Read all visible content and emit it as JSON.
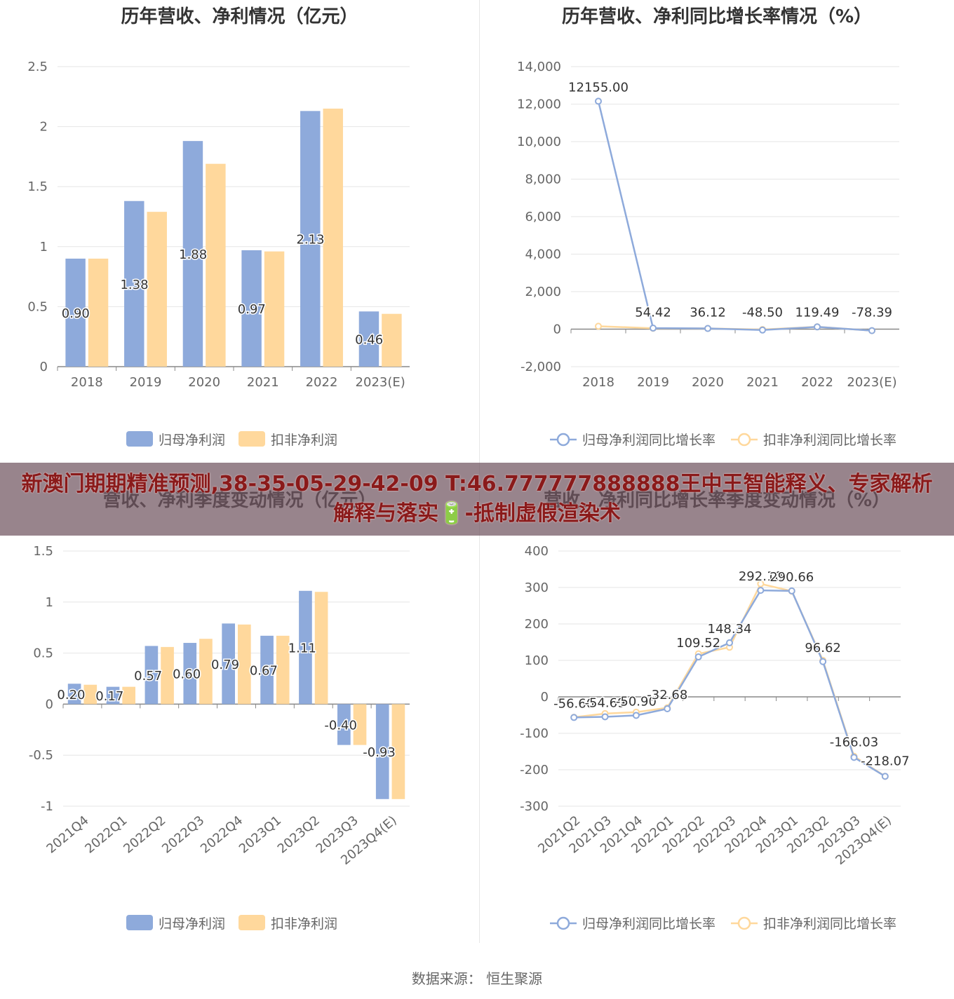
{
  "banner": {
    "text": "新澳门期期精准预测,38-35-05-29-42-09 T:46.777777888888王中王智能释义、专家解析解释与落实🔋-抵制虚假渲染术"
  },
  "source": "数据来源：  恒生聚源",
  "colors": {
    "series1": "#8eaadb",
    "series2": "#ffd89c",
    "axis": "#666666",
    "grid": "#e6e6e6"
  },
  "chart_data": [
    {
      "type": "bar",
      "title": "历年营收、净利情况（亿元）",
      "categories": [
        "2018",
        "2019",
        "2020",
        "2021",
        "2022",
        "2023(E)"
      ],
      "ylim": [
        0,
        2.5
      ],
      "yticks": [
        "0",
        "0.5",
        "1",
        "1.5",
        "2",
        "2.5"
      ],
      "series": [
        {
          "name": "归母净利润",
          "values": [
            0.9,
            1.38,
            1.88,
            0.97,
            2.13,
            0.46
          ],
          "labels": [
            "0.90",
            "1.38",
            "1.88",
            "0.97",
            "2.13",
            "0.46"
          ]
        },
        {
          "name": "扣非净利润",
          "values": [
            0.9,
            1.29,
            1.69,
            0.96,
            2.15,
            0.44
          ]
        }
      ],
      "legend": "bottom"
    },
    {
      "type": "line",
      "title": "历年营收、净利同比增长率情况（%）",
      "categories": [
        "2018",
        "2019",
        "2020",
        "2021",
        "2022",
        "2023(E)"
      ],
      "ylim": [
        -2000,
        14000
      ],
      "yticks": [
        "-2,000",
        "0",
        "2,000",
        "4,000",
        "6,000",
        "8,000",
        "10,000",
        "12,000",
        "14,000"
      ],
      "series": [
        {
          "name": "归母净利润同比增长率",
          "values": [
            12155.0,
            54.42,
            36.12,
            -48.5,
            119.49,
            -78.39
          ],
          "labels": [
            "12155.00",
            "54.42",
            "36.12",
            "-48.50",
            "119.49",
            "-78.39"
          ]
        },
        {
          "name": "扣非净利润同比增长率",
          "values": [
            155,
            48,
            38,
            -20,
            125,
            -80
          ]
        }
      ],
      "legend": "bottom"
    },
    {
      "type": "bar",
      "title": "营收、净利季度变动情况（亿元）",
      "categories": [
        "2021Q4",
        "2022Q1",
        "2022Q2",
        "2022Q3",
        "2022Q4",
        "2023Q1",
        "2023Q2",
        "2023Q3",
        "2023Q4(E)"
      ],
      "ylim": [
        -1,
        1.5
      ],
      "yticks": [
        "-1",
        "-0.5",
        "0",
        "0.5",
        "1",
        "1.5"
      ],
      "series": [
        {
          "name": "归母净利润",
          "values": [
            0.2,
            0.17,
            0.57,
            0.6,
            0.79,
            0.67,
            1.11,
            -0.4,
            -0.93
          ],
          "labels": [
            "0.20",
            "0.17",
            "0.57",
            "0.60",
            "0.79",
            "0.67",
            "1.11",
            "-0.40",
            "-0.93"
          ]
        },
        {
          "name": "扣非净利润",
          "values": [
            0.19,
            0.17,
            0.56,
            0.64,
            0.78,
            0.67,
            1.1,
            -0.4,
            -0.93
          ]
        }
      ],
      "legend": "bottom"
    },
    {
      "type": "line",
      "title": "营收、净利同比增长率季度变动情况（%）",
      "categories": [
        "2021Q2",
        "2021Q3",
        "2021Q4",
        "2022Q1",
        "2022Q2",
        "2022Q3",
        "2022Q4",
        "2023Q1",
        "2023Q2",
        "2023Q3",
        "2023Q4(E)"
      ],
      "ylim": [
        -300,
        400
      ],
      "yticks": [
        "-300",
        "-200",
        "-100",
        "0",
        "100",
        "200",
        "300",
        "400"
      ],
      "series": [
        {
          "name": "归母净利润同比增长率",
          "values": [
            -56.6,
            -54.69,
            -50.9,
            -32.68,
            109.52,
            148.34,
            292.1,
            290.66,
            96.62,
            -166.03,
            -218.07
          ],
          "labels": [
            "-56.60",
            "-54.69",
            "-50.90",
            "-32.68",
            "109.52",
            "148.34",
            "292.10",
            "290.66",
            "96.62",
            "-166.03",
            "-218.07"
          ]
        },
        {
          "name": "扣非净利润同比增长率",
          "values": [
            -56,
            -46,
            -42,
            -30,
            118,
            136,
            310,
            290,
            100,
            -163,
            -218
          ]
        }
      ],
      "legend": "bottom"
    }
  ]
}
